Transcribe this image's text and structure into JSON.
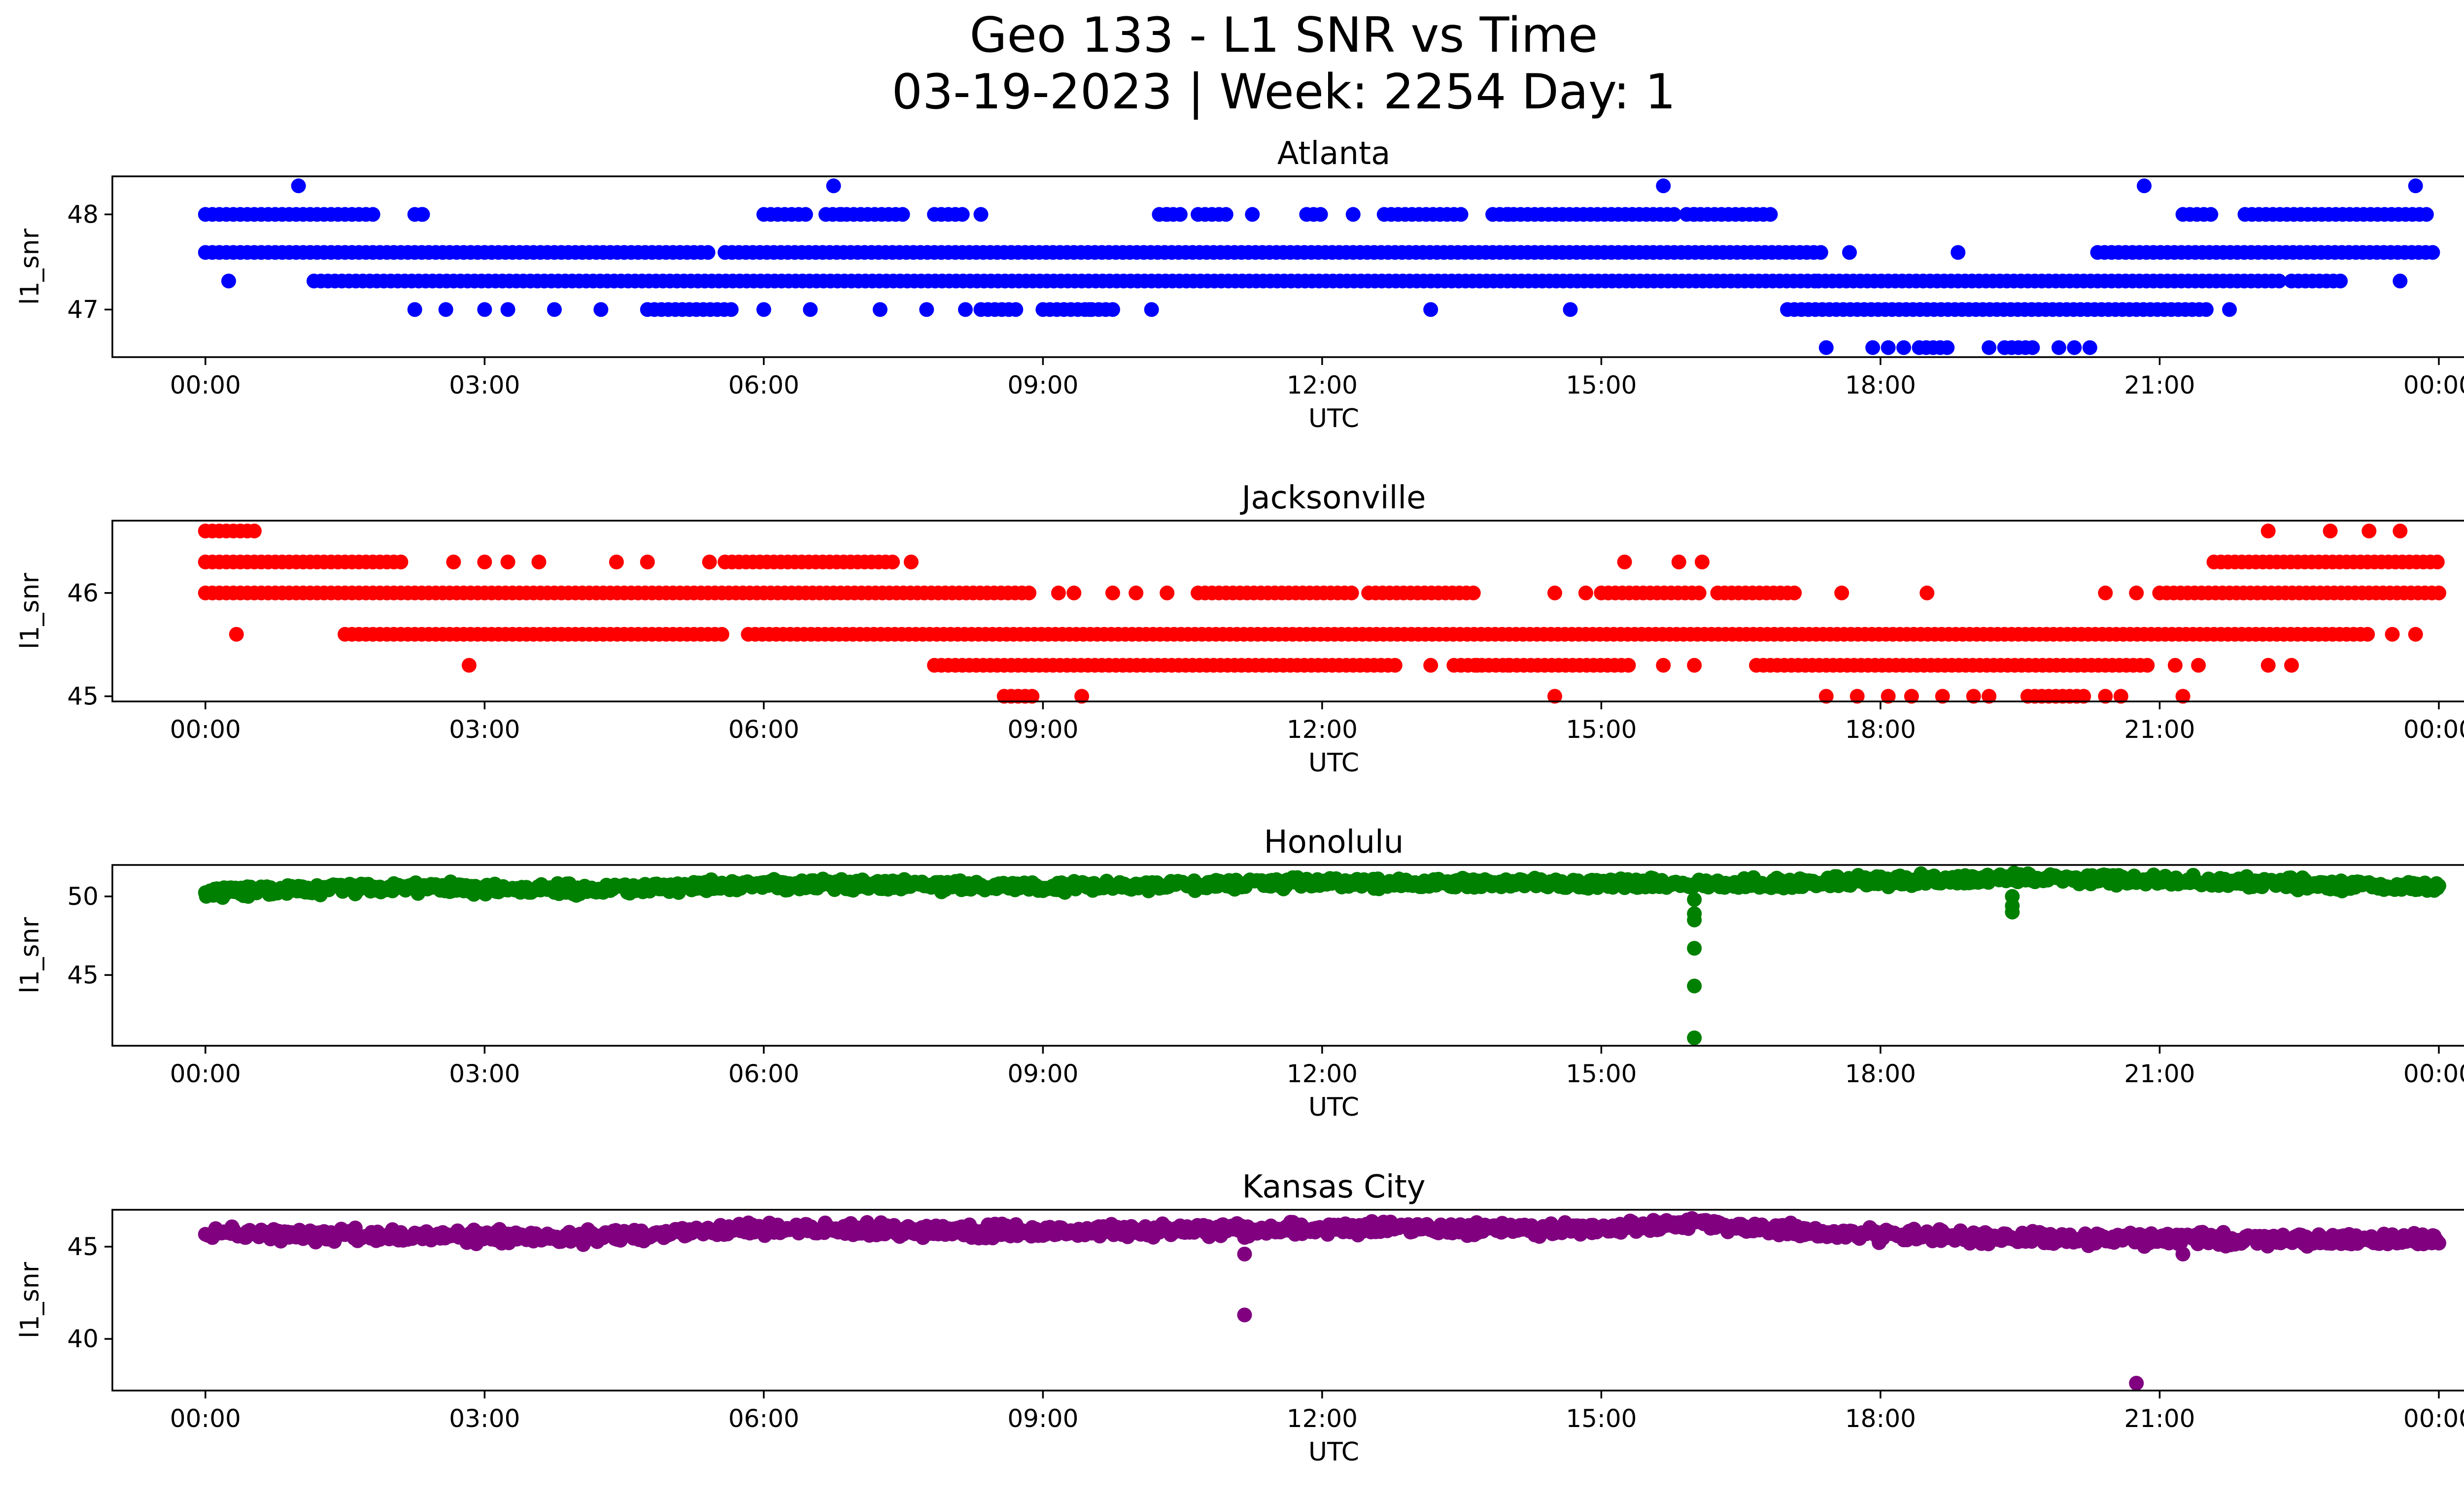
{
  "figure": {
    "title_line1": "Geo 133 - L1 SNR vs Time",
    "title_line2": "03-19-2023 | Week: 2254 Day: 1"
  },
  "chart_data": [
    {
      "type": "scatter",
      "title": "Atlanta",
      "xlabel": "UTC",
      "ylabel": "l1_snr",
      "color": "#0000ff",
      "xlim": [
        "23:00",
        "25:15"
      ],
      "ylim": [
        46.5,
        48.4
      ],
      "x_ticks": [
        "00:00",
        "03:00",
        "06:00",
        "09:00",
        "12:00",
        "15:00",
        "18:00",
        "21:00",
        "00:00"
      ],
      "y_ticks": [
        47,
        48
      ],
      "levels": [
        {
          "y": 48.3,
          "times": [
            "01:00",
            "06:45",
            "15:40",
            "20:50",
            "23:45"
          ]
        },
        {
          "y": 48.0,
          "segments": [
            [
              "00:00",
              "01:50"
            ],
            [
              "02:15",
              "02:20"
            ],
            [
              "06:00",
              "06:30"
            ],
            [
              "06:40",
              "07:30"
            ],
            [
              "07:50",
              "08:10"
            ],
            [
              "10:15",
              "10:30"
            ],
            [
              "10:40",
              "11:00"
            ],
            [
              "11:50",
              "12:00"
            ],
            [
              "12:40",
              "13:30"
            ],
            [
              "13:50",
              "15:50"
            ],
            [
              "15:55",
              "16:50"
            ],
            [
              "21:15",
              "21:35"
            ],
            [
              "21:55",
              "23:55"
            ]
          ],
          "times": [
            "02:20",
            "06:50",
            "08:20",
            "10:20",
            "11:15",
            "12:20",
            "14:00",
            "16:00"
          ]
        },
        {
          "y": 47.6,
          "segments": [
            [
              "00:00",
              "05:25"
            ],
            [
              "05:35",
              "17:25"
            ],
            [
              "20:20",
              "24:00"
            ]
          ],
          "times": [
            "17:40",
            "18:50"
          ]
        },
        {
          "y": 47.3,
          "segments": [
            [
              "01:10",
              "17:20"
            ],
            [
              "17:20",
              "22:20"
            ],
            [
              "22:25",
              "23:00"
            ]
          ],
          "times": [
            "00:15",
            "23:35"
          ]
        },
        {
          "y": 47.0,
          "segments": [
            [
              "04:45",
              "05:40"
            ],
            [
              "08:20",
              "08:45"
            ],
            [
              "09:00",
              "09:45"
            ],
            [
              "17:00",
              "21:30"
            ]
          ],
          "times": [
            "02:15",
            "02:35",
            "03:00",
            "03:15",
            "03:45",
            "04:15",
            "06:00",
            "06:30",
            "07:15",
            "07:45",
            "08:10",
            "09:30",
            "10:10",
            "13:10",
            "14:40",
            "21:45"
          ]
        },
        {
          "y": 46.6,
          "segments": [
            [
              "18:25",
              "18:45"
            ],
            [
              "19:20",
              "19:40"
            ]
          ],
          "times": [
            "17:25",
            "17:55",
            "18:05",
            "18:15",
            "19:10",
            "19:55",
            "20:05",
            "20:15"
          ]
        }
      ]
    },
    {
      "type": "scatter",
      "title": "Jacksonville",
      "xlabel": "UTC",
      "ylabel": "l1_snr",
      "color": "#ff0000",
      "xlim": [
        "23:00",
        "25:15"
      ],
      "ylim": [
        44.95,
        46.7
      ],
      "x_ticks": [
        "00:00",
        "03:00",
        "06:00",
        "09:00",
        "12:00",
        "15:00",
        "18:00",
        "21:00",
        "00:00"
      ],
      "y_ticks": [
        45,
        46
      ],
      "levels": [
        {
          "y": 46.6,
          "segments": [
            [
              "00:00",
              "00:35"
            ]
          ],
          "times": [
            "22:10",
            "22:50",
            "23:15",
            "23:35"
          ]
        },
        {
          "y": 46.3,
          "segments": [
            [
              "00:00",
              "02:10"
            ],
            [
              "05:35",
              "07:25"
            ],
            [
              "21:35",
              "24:00"
            ]
          ],
          "times": [
            "02:40",
            "03:00",
            "03:15",
            "03:35",
            "04:25",
            "04:45",
            "05:25",
            "07:35",
            "15:15",
            "15:50",
            "16:05"
          ]
        },
        {
          "y": 46.0,
          "segments": [
            [
              "00:00",
              "08:55"
            ],
            [
              "10:40",
              "12:20"
            ],
            [
              "12:30",
              "13:40"
            ],
            [
              "15:00",
              "16:05"
            ],
            [
              "16:15",
              "17:05"
            ],
            [
              "21:00",
              "24:00"
            ]
          ],
          "times": [
            "09:10",
            "09:20",
            "09:45",
            "10:00",
            "10:20",
            "14:30",
            "14:50",
            "17:35",
            "18:30",
            "20:25",
            "20:45"
          ]
        },
        {
          "y": 45.6,
          "segments": [
            [
              "01:30",
              "05:35"
            ],
            [
              "05:50",
              "23:15"
            ]
          ],
          "times": [
            "00:20",
            "23:30",
            "23:45"
          ]
        },
        {
          "y": 45.3,
          "segments": [
            [
              "07:50",
              "12:50"
            ],
            [
              "13:25",
              "15:20"
            ],
            [
              "16:40",
              "20:55"
            ]
          ],
          "times": [
            "02:50",
            "13:10",
            "13:40",
            "14:00",
            "15:40",
            "16:00",
            "21:10",
            "21:25",
            "22:10",
            "22:25"
          ]
        },
        {
          "y": 45.0,
          "segments": [
            [
              "08:35",
              "08:55"
            ],
            [
              "19:35",
              "20:15"
            ]
          ],
          "times": [
            "09:25",
            "14:30",
            "17:25",
            "17:45",
            "18:05",
            "18:20",
            "18:40",
            "19:00",
            "19:10",
            "20:25",
            "20:35",
            "21:15"
          ]
        }
      ]
    },
    {
      "type": "scatter",
      "title": "Honolulu",
      "xlabel": "UTC",
      "ylabel": "l1_snr",
      "color": "#008000",
      "xlim": [
        "23:00",
        "25:15"
      ],
      "ylim": [
        40.5,
        52.0
      ],
      "x_ticks": [
        "00:00",
        "03:00",
        "06:00",
        "09:00",
        "12:00",
        "15:00",
        "18:00",
        "21:00",
        "00:00"
      ],
      "y_ticks": [
        45,
        50
      ],
      "baseline": [
        [
          "00:00",
          50.3
        ],
        [
          "02:00",
          50.6
        ],
        [
          "04:00",
          50.4
        ],
        [
          "06:00",
          50.8
        ],
        [
          "09:00",
          50.6
        ],
        [
          "12:00",
          50.9
        ],
        [
          "15:00",
          50.8
        ],
        [
          "17:00",
          50.8
        ],
        [
          "18:00",
          51.0
        ],
        [
          "20:00",
          51.2
        ],
        [
          "21:00",
          51.0
        ],
        [
          "24:00",
          50.6
        ]
      ],
      "spread": 0.5,
      "dips": [
        {
          "time": "16:00",
          "values": [
            49.8,
            48.9,
            48.5,
            46.7,
            44.3,
            41.0
          ]
        },
        {
          "time": "19:25",
          "values": [
            50.0,
            49.4,
            49.0
          ]
        }
      ]
    },
    {
      "type": "scatter",
      "title": "Kansas City",
      "xlabel": "UTC",
      "ylabel": "l1_snr",
      "color": "#800080",
      "xlim": [
        "23:00",
        "25:15"
      ],
      "ylim": [
        37.2,
        47.0
      ],
      "x_ticks": [
        "00:00",
        "03:00",
        "06:00",
        "09:00",
        "12:00",
        "15:00",
        "18:00",
        "21:00",
        "00:00"
      ],
      "y_ticks": [
        40,
        45
      ],
      "baseline": [
        [
          "00:00",
          45.7
        ],
        [
          "04:00",
          45.5
        ],
        [
          "06:00",
          46.0
        ],
        [
          "09:00",
          45.8
        ],
        [
          "12:00",
          46.0
        ],
        [
          "15:00",
          45.9
        ],
        [
          "16:00",
          46.3
        ],
        [
          "17:00",
          45.9
        ],
        [
          "18:00",
          45.6
        ],
        [
          "21:00",
          45.4
        ],
        [
          "24:00",
          45.4
        ]
      ],
      "spread": 0.5,
      "dips": [
        {
          "time": "11:10",
          "values": [
            45.5,
            44.6,
            41.3
          ]
        },
        {
          "time": "20:45",
          "values": [
            37.6
          ]
        },
        {
          "time": "21:15",
          "values": [
            44.6
          ]
        }
      ]
    }
  ]
}
